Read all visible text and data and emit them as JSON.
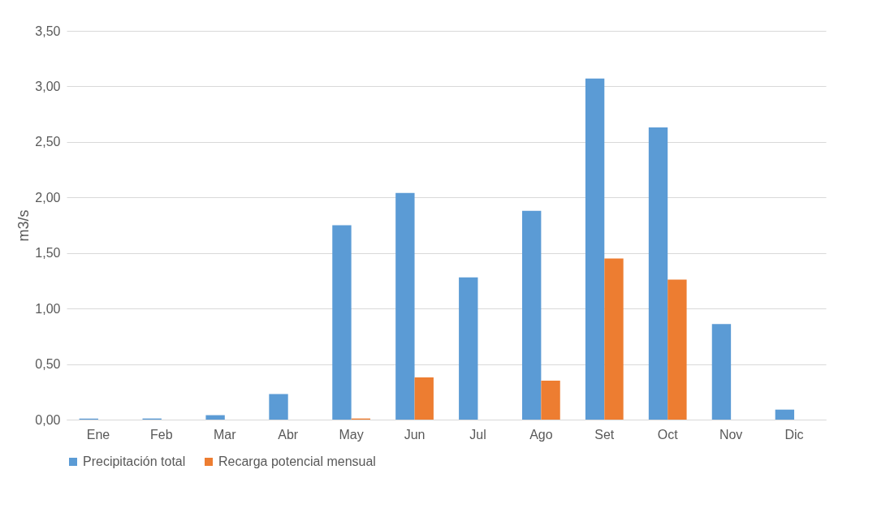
{
  "chart_data": {
    "type": "bar",
    "ylabel": "m3/s",
    "categories": [
      "Ene",
      "Feb",
      "Mar",
      "Abr",
      "May",
      "Jun",
      "Jul",
      "Ago",
      "Set",
      "Oct",
      "Nov",
      "Dic"
    ],
    "series": [
      {
        "name": "Precipitación total",
        "color": "#5b9bd5",
        "values": [
          0.01,
          0.01,
          0.04,
          0.23,
          1.75,
          2.04,
          1.28,
          1.88,
          3.07,
          2.63,
          0.86,
          0.09
        ]
      },
      {
        "name": "Recarga potencial mensual",
        "color": "#ed7d31",
        "values": [
          0,
          0,
          0,
          0,
          0.01,
          0.38,
          0,
          0.35,
          1.45,
          1.26,
          0,
          0
        ]
      }
    ],
    "ylim": [
      0,
      3.5
    ],
    "yticks": [
      {
        "value": 0,
        "label": "0,00"
      },
      {
        "value": 0.5,
        "label": "0,50"
      },
      {
        "value": 1,
        "label": "1,00"
      },
      {
        "value": 1.5,
        "label": "1,50"
      },
      {
        "value": 2,
        "label": "2,00"
      },
      {
        "value": 2.5,
        "label": "2,50"
      },
      {
        "value": 3,
        "label": "3,00"
      },
      {
        "value": 3.5,
        "label": "3,50"
      }
    ],
    "grid": "y",
    "legend": "bottom"
  }
}
